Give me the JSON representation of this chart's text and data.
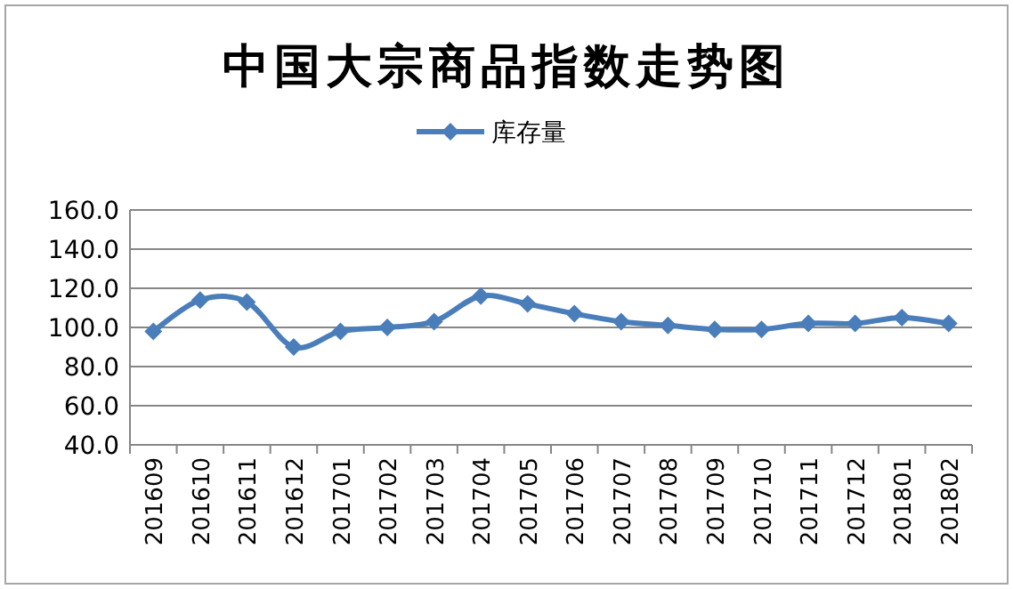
{
  "chart_data": {
    "type": "line",
    "title": "中国大宗商品指数走势图",
    "categories": [
      "201609",
      "201610",
      "201611",
      "201612",
      "201701",
      "201702",
      "201703",
      "201704",
      "201705",
      "201706",
      "201707",
      "201708",
      "201709",
      "201710",
      "201711",
      "201712",
      "201801",
      "201802"
    ],
    "series": [
      {
        "name": "库存量",
        "color": "#4a7ebb",
        "values": [
          98,
          114,
          113,
          90,
          98,
          100,
          103,
          116,
          112,
          107,
          103,
          101,
          99,
          99,
          102,
          102,
          105,
          102
        ]
      }
    ],
    "ylim": [
      40,
      160
    ],
    "yticks": [
      {
        "value": 40,
        "label": "40.0"
      },
      {
        "value": 60,
        "label": "60.0"
      },
      {
        "value": 80,
        "label": "80.0"
      },
      {
        "value": 100,
        "label": "100.0"
      },
      {
        "value": 120,
        "label": "120.0"
      },
      {
        "value": 140,
        "label": "140.0"
      },
      {
        "value": 160,
        "label": "160.0"
      }
    ],
    "grid": "y",
    "legend": "top",
    "marker": "diamond",
    "line_style": "solid"
  }
}
